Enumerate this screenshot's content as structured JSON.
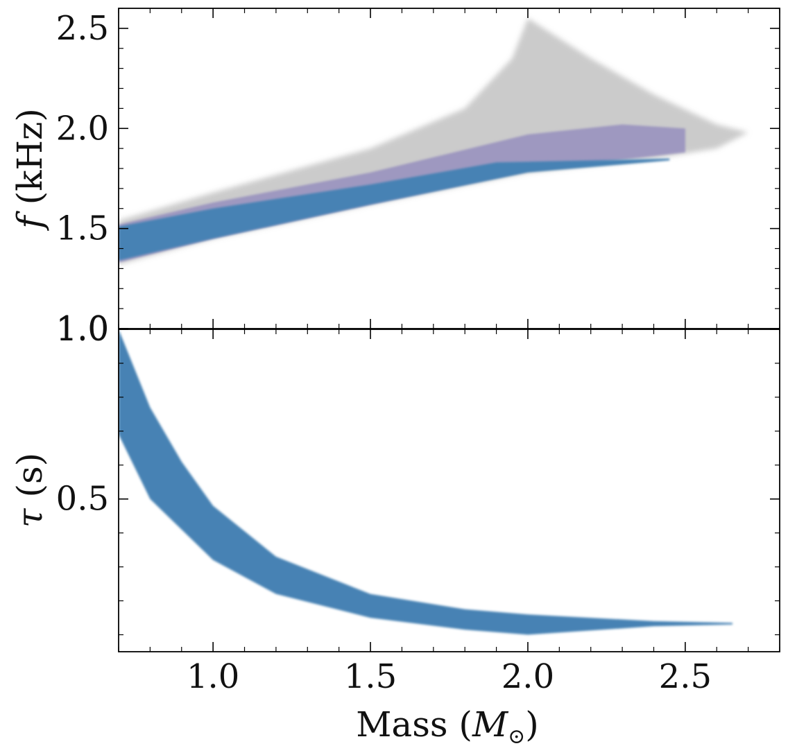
{
  "chart_data": [
    {
      "panel": "top",
      "type": "area",
      "ylabel_symbol": "f",
      "ylabel_units": "(kHz)",
      "xlim": [
        0.7,
        2.8
      ],
      "ylim": [
        1.0,
        2.6
      ],
      "yticks": [
        1.0,
        1.5,
        2.0,
        2.5
      ],
      "ytick_labels": [
        "1.0",
        "1.5",
        "2.0",
        "2.5"
      ],
      "series": [
        {
          "name": "prior envelope (grey)",
          "color": "#8c8c8c",
          "upper": [
            [
              0.7,
              1.54
            ],
            [
              1.0,
              1.68
            ],
            [
              1.5,
              1.9
            ],
            [
              1.8,
              2.1
            ],
            [
              1.95,
              2.35
            ],
            [
              2.0,
              2.55
            ],
            [
              2.2,
              2.35
            ],
            [
              2.4,
              2.17
            ],
            [
              2.6,
              2.02
            ],
            [
              2.7,
              1.98
            ]
          ],
          "lower": [
            [
              2.7,
              1.98
            ],
            [
              2.6,
              1.9
            ],
            [
              2.4,
              1.85
            ],
            [
              2.0,
              1.78
            ],
            [
              1.5,
              1.62
            ],
            [
              1.0,
              1.45
            ],
            [
              0.7,
              1.32
            ]
          ]
        },
        {
          "name": "posterior (purple)",
          "color": "#8a82bb",
          "upper": [
            [
              0.7,
              1.52
            ],
            [
              1.0,
              1.63
            ],
            [
              1.5,
              1.78
            ],
            [
              2.0,
              1.97
            ],
            [
              2.3,
              2.02
            ],
            [
              2.5,
              2.0
            ]
          ],
          "lower": [
            [
              2.5,
              1.88
            ],
            [
              2.0,
              1.79
            ],
            [
              1.5,
              1.62
            ],
            [
              1.0,
              1.45
            ],
            [
              0.7,
              1.33
            ]
          ]
        },
        {
          "name": "posterior (blue)",
          "color": "#4682b4",
          "upper": [
            [
              0.7,
              1.51
            ],
            [
              1.0,
              1.6
            ],
            [
              1.5,
              1.72
            ],
            [
              1.9,
              1.83
            ],
            [
              2.2,
              1.84
            ],
            [
              2.45,
              1.85
            ]
          ],
          "lower": [
            [
              2.45,
              1.84
            ],
            [
              2.0,
              1.78
            ],
            [
              1.5,
              1.62
            ],
            [
              1.0,
              1.45
            ],
            [
              0.7,
              1.34
            ]
          ]
        }
      ]
    },
    {
      "panel": "bottom",
      "type": "area",
      "xlabel_prefix": "Mass (",
      "xlabel_symbol": "M",
      "xlabel_sub": "⊙",
      "xlabel_suffix": ")",
      "ylabel_symbol": "τ",
      "ylabel_units": "(s)",
      "xlim": [
        0.7,
        2.8
      ],
      "ylim": [
        0.05,
        1.0
      ],
      "xticks": [
        1.0,
        1.5,
        2.0,
        2.5
      ],
      "xtick_labels": [
        "1.0",
        "1.5",
        "2.0",
        "2.5"
      ],
      "yticks": [
        0.5,
        1.0
      ],
      "ytick_labels": [
        "0.5",
        "1.0"
      ],
      "series": [
        {
          "name": "posterior (blue)",
          "color": "#4682b4",
          "upper": [
            [
              0.7,
              1.0
            ],
            [
              0.8,
              0.77
            ],
            [
              0.9,
              0.61
            ],
            [
              1.0,
              0.48
            ],
            [
              1.2,
              0.33
            ],
            [
              1.5,
              0.22
            ],
            [
              1.8,
              0.175
            ],
            [
              2.0,
              0.16
            ],
            [
              2.4,
              0.14
            ],
            [
              2.65,
              0.135
            ]
          ],
          "lower": [
            [
              2.65,
              0.13
            ],
            [
              2.4,
              0.125
            ],
            [
              2.0,
              0.1
            ],
            [
              1.8,
              0.115
            ],
            [
              1.5,
              0.15
            ],
            [
              1.2,
              0.22
            ],
            [
              1.0,
              0.32
            ],
            [
              0.8,
              0.5
            ],
            [
              0.7,
              0.69
            ]
          ]
        }
      ]
    }
  ]
}
